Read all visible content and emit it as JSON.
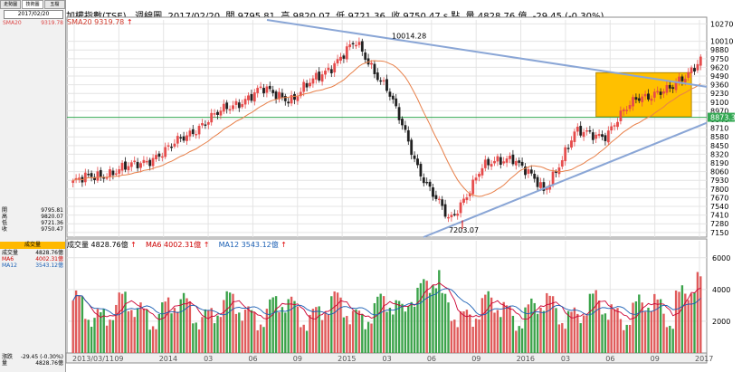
{
  "header": {
    "title": "加權指數(TSE)",
    "period": "週線圖",
    "date": "2017/02/20",
    "open_label": "開",
    "open": "9795.81",
    "high_label": "高",
    "high": "9820.07",
    "low_label": "低",
    "low": "9721.36",
    "close_label": "收",
    "close": "9750.47 s 點",
    "volume_label": "量",
    "volume": "4828.76 億",
    "change": "-29.45 (-0.30%)"
  },
  "left_panel": {
    "tabs": [
      "走勢圖",
      "技術圖",
      "五檔"
    ],
    "date": "2017/02/20",
    "sma_label": "SMA20",
    "sma_value": "9319.78",
    "ohlc": [
      {
        "label": "開",
        "value": "9795.81"
      },
      {
        "label": "高",
        "value": "9820.07"
      },
      {
        "label": "低",
        "value": "9721.36"
      },
      {
        "label": "收",
        "value": "9750.47"
      }
    ],
    "volume_header": "成交量",
    "volume_rows": [
      {
        "label": "成交量",
        "value": "4828.76億"
      },
      {
        "label": "MA6",
        "value": "4002.31億"
      },
      {
        "label": "MA12",
        "value": "3543.12億"
      }
    ],
    "change_rows": [
      {
        "label": "漲跌",
        "value": "-29.45 (-0.30%)"
      },
      {
        "label": "量",
        "value": "4828.76億"
      }
    ]
  },
  "price_panel": {
    "sma_legend": "SMA20 9319.78",
    "high_marker": "10014.28",
    "low_marker": "7203.07",
    "current_label": "8873.3"
  },
  "volume_panel": {
    "vol_legend": "成交量 4828.76億",
    "ma6_legend": "MA6 4002.31億",
    "ma12_legend": "MA12 3543.12億"
  },
  "colors": {
    "up": "#e64b4b",
    "down": "#1f1f1f",
    "vol_up": "#e05a5a",
    "vol_down": "#3ba34a",
    "sma": "#e8804a",
    "trend": "#8aa6d6",
    "box": "#ffc000"
  },
  "chart_data": [
    {
      "type": "candlestick",
      "title": "加權指數(TSE) 週線圖",
      "y_ticks": [
        10270,
        10010,
        9880,
        9750,
        9620,
        9490,
        9360,
        9230,
        9100,
        8970,
        8840,
        8710,
        8580,
        8450,
        8320,
        8190,
        8060,
        7930,
        7800,
        7670,
        7540,
        7410,
        7280,
        7150
      ],
      "x_ticks": [
        "2013/03/11",
        "09",
        "2014",
        "03",
        "06",
        "09",
        "2015",
        "03",
        "06",
        "09",
        "2016",
        "03",
        "06",
        "09",
        "2017"
      ],
      "ylim": [
        7080,
        10330
      ],
      "close_path": [
        [
          "2013/03/11",
          7900
        ],
        [
          "2013/06",
          8030
        ],
        [
          "2013/09",
          8150
        ],
        [
          "2013/12",
          8380
        ],
        [
          "2014/03",
          8740
        ],
        [
          "2014/06",
          9030
        ],
        [
          "2014/09",
          9280
        ],
        [
          "2014/12",
          9150
        ],
        [
          "2015/03",
          9550
        ],
        [
          "2015/04",
          9980
        ],
        [
          "2015/06",
          9320
        ],
        [
          "2015/08",
          8120
        ],
        [
          "2015/08",
          7300
        ],
        [
          "2015/09",
          8100
        ],
        [
          "2015/12",
          8300
        ],
        [
          "2016/01",
          7760
        ],
        [
          "2016/03",
          8630
        ],
        [
          "2016/06",
          8620
        ],
        [
          "2016/09",
          9190
        ],
        [
          "2016/12",
          9260
        ],
        [
          "2017/02/20",
          9750
        ]
      ],
      "annotations": {
        "high": 10014.28,
        "low": 7203.07,
        "price_line": 8873.3
      }
    },
    {
      "type": "bar",
      "title": "成交量",
      "y_ticks": [
        6000,
        4000,
        2000
      ],
      "ylim": [
        0,
        6500
      ],
      "series": [
        {
          "name": "成交量",
          "last": 4828.76
        },
        {
          "name": "MA6",
          "last": 4002.31
        },
        {
          "name": "MA12",
          "last": 3543.12
        }
      ]
    }
  ]
}
